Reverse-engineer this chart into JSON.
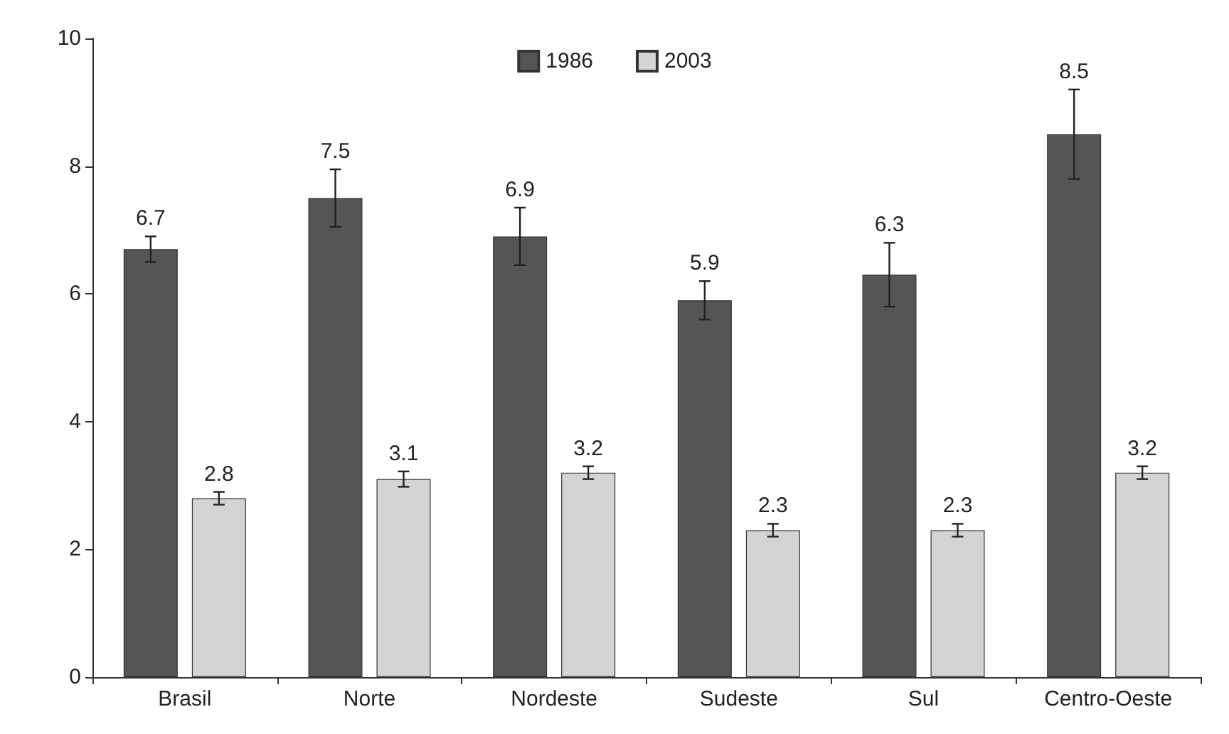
{
  "chart_data": {
    "type": "bar",
    "categories": [
      "Brasil",
      "Norte",
      "Nordeste",
      "Sudeste",
      "Sul",
      "Centro-Oeste"
    ],
    "series": [
      {
        "name": "1986",
        "color": "#555555",
        "values": [
          6.7,
          7.5,
          6.9,
          5.9,
          6.3,
          8.5
        ],
        "errors": [
          0.2,
          0.45,
          0.45,
          0.3,
          0.5,
          0.7
        ]
      },
      {
        "name": "2003",
        "color": "#d4d4d4",
        "values": [
          2.8,
          3.1,
          3.2,
          2.3,
          2.3,
          3.2
        ],
        "errors": [
          0.1,
          0.12,
          0.1,
          0.1,
          0.1,
          0.1
        ]
      }
    ],
    "ylim": [
      0,
      10
    ],
    "yticks": [
      0,
      2,
      4,
      6,
      8,
      10
    ],
    "grid": false,
    "legend": "top",
    "data_labels": true
  }
}
